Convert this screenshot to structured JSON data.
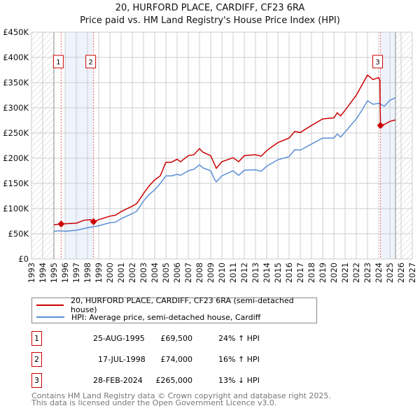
{
  "title": "20, HURFORD PLACE, CARDIFF, CF23 6RA",
  "subtitle": "Price paid vs. HM Land Registry's House Price Index (HPI)",
  "chart_data": {
    "type": "line",
    "ylim": [
      0,
      450
    ],
    "xlim": [
      1993,
      2027
    ],
    "yticks": [
      {
        "v": 0,
        "label": "£0"
      },
      {
        "v": 50,
        "label": "£50K"
      },
      {
        "v": 100,
        "label": "£100K"
      },
      {
        "v": 150,
        "label": "£150K"
      },
      {
        "v": 200,
        "label": "£200K"
      },
      {
        "v": 250,
        "label": "£250K"
      },
      {
        "v": 300,
        "label": "£300K"
      },
      {
        "v": 350,
        "label": "£350K"
      },
      {
        "v": 400,
        "label": "£400K"
      },
      {
        "v": 450,
        "label": "£450K"
      }
    ],
    "xticks": [
      "1993",
      "1994",
      "1995",
      "1996",
      "1997",
      "1998",
      "1999",
      "2000",
      "2001",
      "2002",
      "2003",
      "2004",
      "2005",
      "2006",
      "2007",
      "2008",
      "2009",
      "2010",
      "2011",
      "2012",
      "2013",
      "2014",
      "2015",
      "2016",
      "2017",
      "2018",
      "2019",
      "2020",
      "2021",
      "2022",
      "2023",
      "2024",
      "2025",
      "2026",
      "2027"
    ],
    "data_range": [
      1995.0,
      2025.5
    ],
    "series": [
      {
        "name": "20, HURFORD PLACE, CARDIFF, CF23 6RA (semi-detached house)",
        "color": "#cc0000",
        "points": [
          [
            1995.0,
            68
          ],
          [
            1995.65,
            69.5
          ],
          [
            1996,
            70
          ],
          [
            1997,
            71
          ],
          [
            1997.7,
            77
          ],
          [
            1998.3,
            78
          ],
          [
            1998.55,
            74
          ],
          [
            1999,
            78
          ],
          [
            2000,
            85
          ],
          [
            2000.5,
            87
          ],
          [
            2001,
            94
          ],
          [
            2002,
            105
          ],
          [
            2002.4,
            110
          ],
          [
            2003,
            130
          ],
          [
            2003.5,
            145
          ],
          [
            2004,
            157
          ],
          [
            2004.5,
            165
          ],
          [
            2005,
            192
          ],
          [
            2005.5,
            192
          ],
          [
            2006,
            198
          ],
          [
            2006.3,
            193
          ],
          [
            2007,
            205
          ],
          [
            2007.5,
            207
          ],
          [
            2008,
            219
          ],
          [
            2008.3,
            212
          ],
          [
            2009,
            205
          ],
          [
            2009.3,
            190
          ],
          [
            2009.5,
            180
          ],
          [
            2010,
            193
          ],
          [
            2011,
            201
          ],
          [
            2011.5,
            193
          ],
          [
            2012,
            205
          ],
          [
            2013,
            207
          ],
          [
            2013.5,
            204
          ],
          [
            2014,
            215
          ],
          [
            2015,
            231
          ],
          [
            2016,
            240
          ],
          [
            2016.5,
            253
          ],
          [
            2017,
            251
          ],
          [
            2018,
            265
          ],
          [
            2019,
            278
          ],
          [
            2020,
            280
          ],
          [
            2020.3,
            290
          ],
          [
            2020.6,
            284
          ],
          [
            2021,
            295
          ],
          [
            2022,
            325
          ],
          [
            2022.5,
            345
          ],
          [
            2023,
            365
          ],
          [
            2023.5,
            356
          ],
          [
            2024,
            360
          ],
          [
            2024.1,
            355
          ],
          [
            2024.16,
            265
          ],
          [
            2024.5,
            267
          ],
          [
            2025,
            273
          ],
          [
            2025.5,
            276
          ]
        ]
      },
      {
        "name": "HPI: Average price, semi-detached house, Cardiff",
        "color": "#5b8fd6",
        "points": [
          [
            1995.0,
            55
          ],
          [
            1995.6,
            56
          ],
          [
            1996,
            55
          ],
          [
            1997,
            57
          ],
          [
            1998,
            62
          ],
          [
            1998.55,
            64
          ],
          [
            1999,
            66
          ],
          [
            2000,
            72
          ],
          [
            2000.5,
            73
          ],
          [
            2001,
            80
          ],
          [
            2002,
            90
          ],
          [
            2002.4,
            95
          ],
          [
            2003,
            115
          ],
          [
            2003.5,
            128
          ],
          [
            2004,
            137
          ],
          [
            2004.5,
            150
          ],
          [
            2005,
            165
          ],
          [
            2005.5,
            165
          ],
          [
            2006,
            168
          ],
          [
            2006.3,
            166
          ],
          [
            2007,
            175
          ],
          [
            2007.5,
            178
          ],
          [
            2008,
            187
          ],
          [
            2008.3,
            181
          ],
          [
            2009,
            175
          ],
          [
            2009.3,
            160
          ],
          [
            2009.5,
            153
          ],
          [
            2010,
            165
          ],
          [
            2011,
            175
          ],
          [
            2011.5,
            166
          ],
          [
            2012,
            176
          ],
          [
            2013,
            177
          ],
          [
            2013.5,
            174
          ],
          [
            2014,
            184
          ],
          [
            2015,
            197
          ],
          [
            2016,
            203
          ],
          [
            2016.5,
            217
          ],
          [
            2017,
            216
          ],
          [
            2018,
            228
          ],
          [
            2019,
            240
          ],
          [
            2020,
            240
          ],
          [
            2020.3,
            248
          ],
          [
            2020.6,
            242
          ],
          [
            2021,
            252
          ],
          [
            2022,
            278
          ],
          [
            2022.5,
            295
          ],
          [
            2023,
            314
          ],
          [
            2023.5,
            307
          ],
          [
            2024,
            309
          ],
          [
            2024.5,
            303
          ],
          [
            2025,
            315
          ],
          [
            2025.5,
            320
          ]
        ]
      }
    ],
    "sales": [
      {
        "label": "1",
        "x": 1995.65,
        "y": 69.5
      },
      {
        "label": "2",
        "x": 1998.54,
        "y": 74
      },
      {
        "label": "3",
        "x": 2024.16,
        "y": 265
      }
    ]
  },
  "legend": {
    "property": "20, HURFORD PLACE, CARDIFF, CF23 6RA (semi-detached house)",
    "hpi": "HPI: Average price, semi-detached house, Cardiff"
  },
  "sales_table": [
    {
      "num": "1",
      "date": "25-AUG-1995",
      "price": "£69,500",
      "hpi": "24% ↑ HPI"
    },
    {
      "num": "2",
      "date": "17-JUL-1998",
      "price": "£74,000",
      "hpi": "16% ↑ HPI"
    },
    {
      "num": "3",
      "date": "28-FEB-2024",
      "price": "£265,000",
      "hpi": "13% ↓ HPI"
    }
  ],
  "footer": [
    "Contains HM Land Registry data © Crown copyright and database right 2025.",
    "This data is licensed under the Open Government Licence v3.0."
  ]
}
